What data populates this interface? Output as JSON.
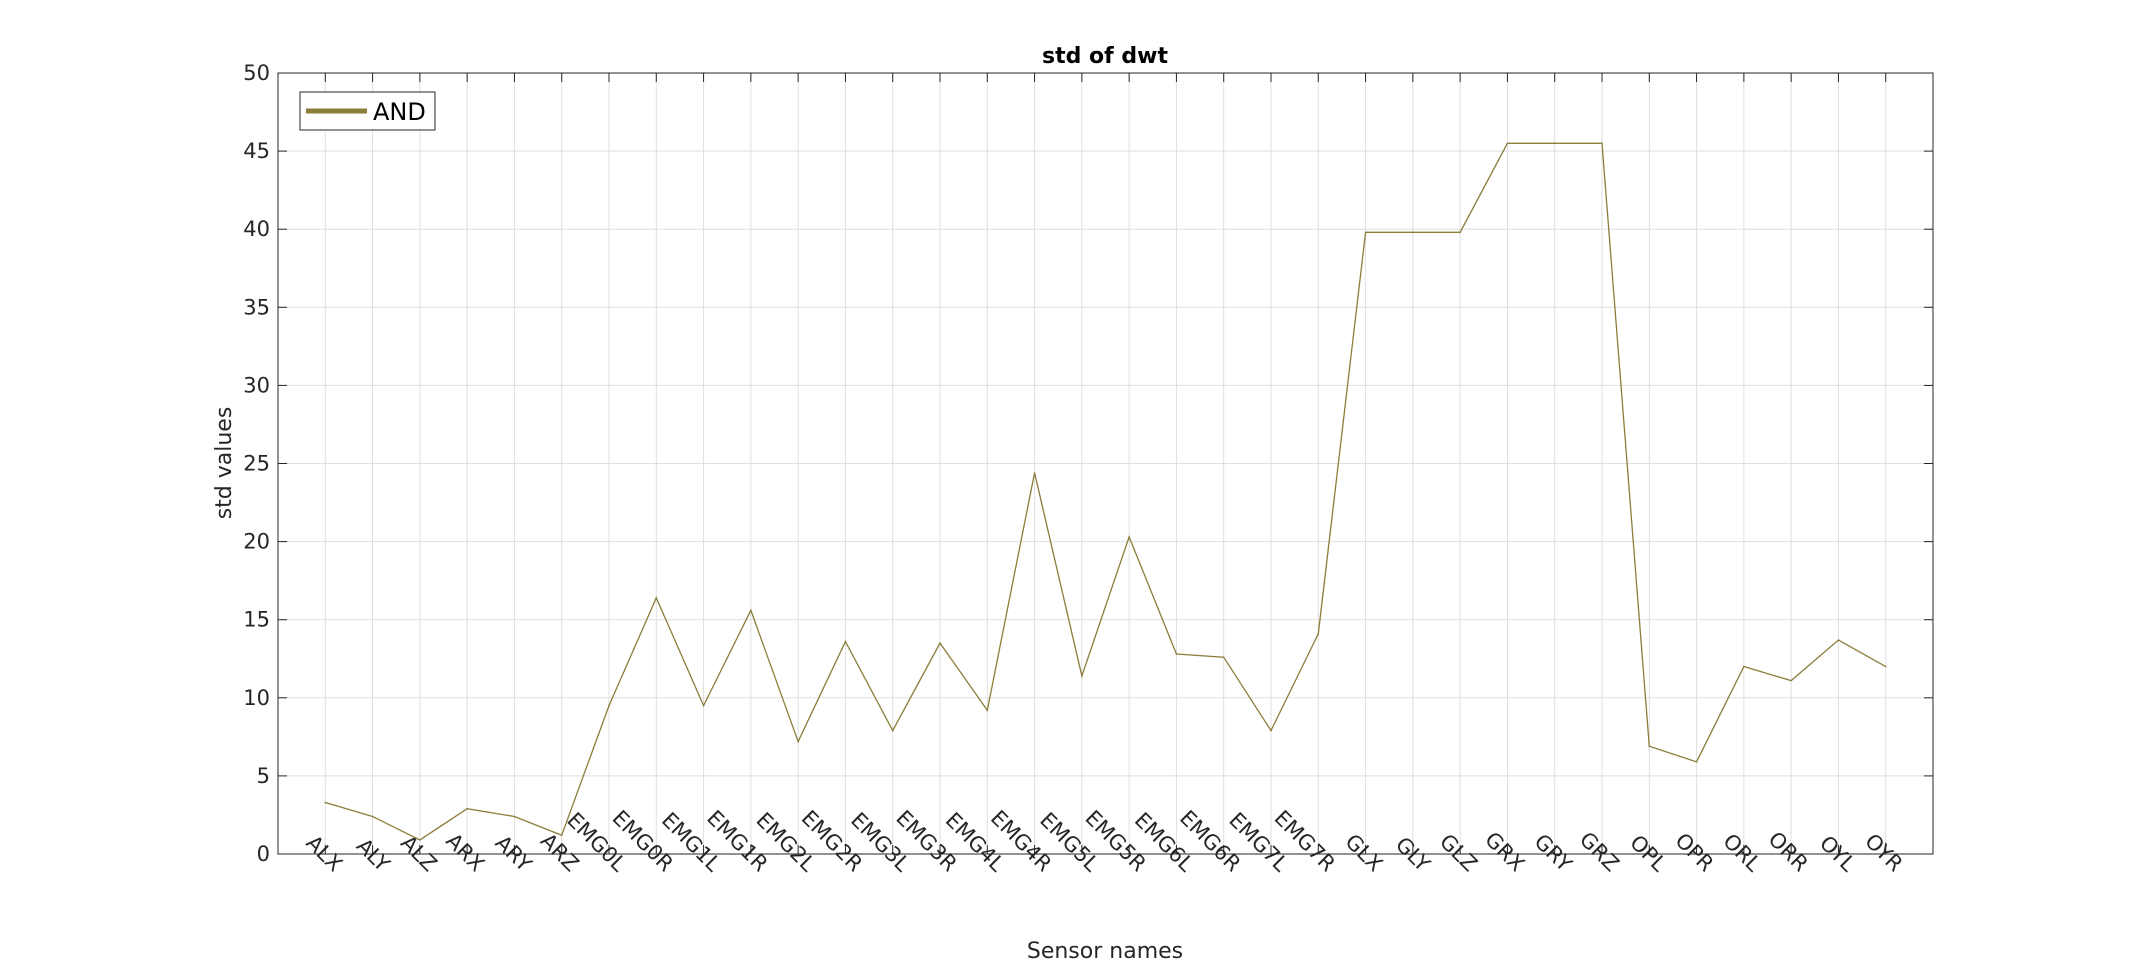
{
  "chart_data": {
    "type": "line",
    "title": "std of dwt",
    "xlabel": "Sensor names",
    "ylabel": "std values",
    "ylim": [
      0,
      50
    ],
    "yticks": [
      0,
      5,
      10,
      15,
      20,
      25,
      30,
      35,
      40,
      45,
      50
    ],
    "grid": true,
    "legend_position": "top-left",
    "categories": [
      "ALX",
      "ALY",
      "ALZ",
      "ARX",
      "ARY",
      "ARZ",
      "EMG0L",
      "EMG0R",
      "EMG1L",
      "EMG1R",
      "EMG2L",
      "EMG2R",
      "EMG3L",
      "EMG3R",
      "EMG4L",
      "EMG4R",
      "EMG5L",
      "EMG5R",
      "EMG6L",
      "EMG6R",
      "EMG7L",
      "EMG7R",
      "GLX",
      "GLY",
      "GLZ",
      "GRX",
      "GRY",
      "GRZ",
      "OPL",
      "OPR",
      "ORL",
      "ORR",
      "OYL",
      "OYR"
    ],
    "series": [
      {
        "name": "AND",
        "color": "#8B7D3A",
        "values": [
          3.3,
          2.4,
          0.9,
          2.9,
          2.4,
          1.2,
          9.5,
          16.4,
          9.5,
          15.6,
          7.2,
          13.6,
          7.9,
          13.5,
          9.2,
          24.4,
          11.4,
          20.3,
          12.8,
          12.6,
          7.9,
          14.1,
          39.8,
          39.8,
          39.8,
          45.5,
          45.5,
          45.5,
          6.9,
          5.9,
          12.0,
          11.1,
          13.7,
          12.0
        ]
      }
    ]
  }
}
